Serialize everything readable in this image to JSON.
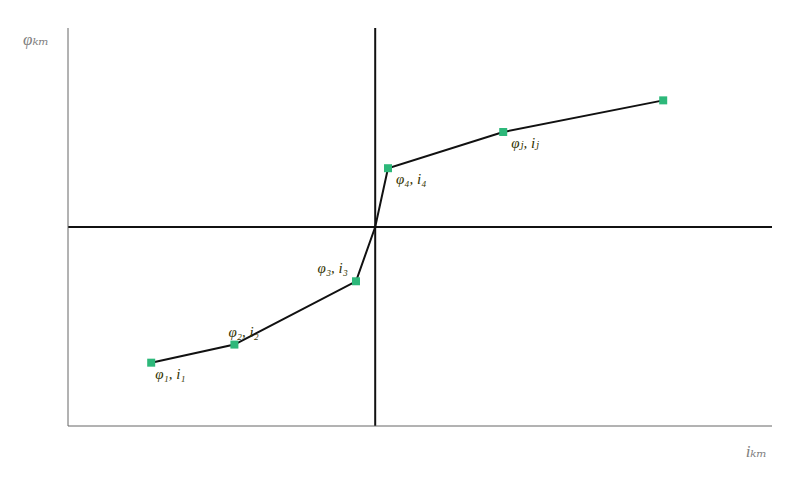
{
  "chart_data": {
    "type": "line",
    "x_label": "iₖₘ",
    "y_label": "φₖₘ",
    "xlim": [
      -4.8,
      6.2
    ],
    "ylim": [
      -2.2,
      2.2
    ],
    "tick_labels": false,
    "grid": false,
    "series": [
      {
        "type": "line",
        "color": "#111111",
        "x": [
          -3.5,
          -2.2,
          -0.3,
          0.0,
          0.2,
          2.0,
          4.5
        ],
        "values": [
          -1.5,
          -1.3,
          -0.6,
          0.0,
          0.65,
          1.05,
          1.4
        ]
      },
      {
        "type": "scatter",
        "marker": "square",
        "color": "#2db87a",
        "x": [
          -3.5,
          -2.2,
          -0.3,
          0.2,
          2.0,
          4.5
        ],
        "values": [
          -1.5,
          -1.3,
          -0.6,
          0.65,
          1.05,
          1.4
        ]
      }
    ],
    "annotations": [
      {
        "text": "φ₁, i₁",
        "x": -3.5,
        "y": -1.5,
        "color": "#333300"
      },
      {
        "text": "φ₂, i₂",
        "x": -2.2,
        "y": -1.3,
        "color": "#333300"
      },
      {
        "text": "φ₃, i₃",
        "x": -0.3,
        "y": -0.6,
        "color": "#333300"
      },
      {
        "text": "φ₄, i₄",
        "x": 0.2,
        "y": 0.65,
        "color": "#333300"
      },
      {
        "text": "φⱼ, iⱼ",
        "x": 2.0,
        "y": 1.05,
        "color": "#333300"
      }
    ]
  }
}
